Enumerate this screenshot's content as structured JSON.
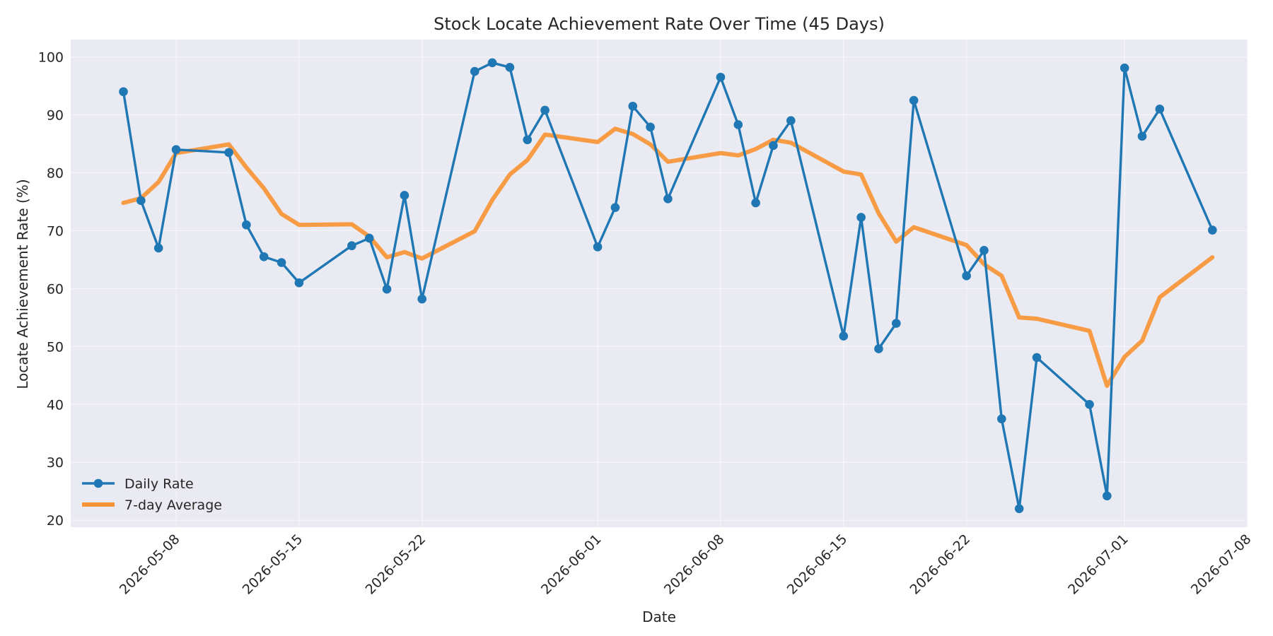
{
  "chart_data": {
    "type": "line",
    "title": "Stock Locate Achievement Rate Over Time (45 Days)",
    "xlabel": "Date",
    "ylabel": "Locate Achievement Rate (%)",
    "xlim": [
      "2026-05-02",
      "2026-07-08"
    ],
    "ylim": [
      18.8,
      103
    ],
    "x_ticks": [
      "2026-05-08",
      "2026-05-15",
      "2026-05-22",
      "2026-06-01",
      "2026-06-08",
      "2026-06-15",
      "2026-06-22",
      "2026-07-01",
      "2026-07-08"
    ],
    "y_ticks": [
      20,
      30,
      40,
      50,
      60,
      70,
      80,
      90,
      100
    ],
    "grid": true,
    "legend_position": "lower-left",
    "colors": {
      "plot_background": "#eaeaf2",
      "daily": "#1f77b4",
      "average": "#f79436"
    },
    "x": [
      "2026-05-05",
      "2026-05-06",
      "2026-05-07",
      "2026-05-08",
      "2026-05-11",
      "2026-05-12",
      "2026-05-13",
      "2026-05-14",
      "2026-05-15",
      "2026-05-18",
      "2026-05-19",
      "2026-05-20",
      "2026-05-21",
      "2026-05-22",
      "2026-05-25",
      "2026-05-26",
      "2026-05-27",
      "2026-05-28",
      "2026-05-29",
      "2026-06-01",
      "2026-06-02",
      "2026-06-03",
      "2026-06-04",
      "2026-06-05",
      "2026-06-08",
      "2026-06-09",
      "2026-06-10",
      "2026-06-11",
      "2026-06-12",
      "2026-06-15",
      "2026-06-16",
      "2026-06-17",
      "2026-06-18",
      "2026-06-19",
      "2026-06-22",
      "2026-06-23",
      "2026-06-24",
      "2026-06-25",
      "2026-06-26",
      "2026-06-29",
      "2026-06-30",
      "2026-07-01",
      "2026-07-02",
      "2026-07-03",
      "2026-07-06"
    ],
    "series": [
      {
        "name": "Daily Rate",
        "values": [
          94.0,
          75.2,
          67.0,
          84.0,
          83.5,
          71.0,
          65.5,
          64.5,
          61.0,
          67.4,
          68.7,
          59.9,
          76.1,
          58.2,
          97.5,
          99.0,
          98.2,
          85.7,
          90.8,
          67.2,
          74.0,
          91.5,
          87.9,
          75.5,
          96.5,
          88.3,
          74.8,
          84.7,
          89.0,
          51.8,
          72.3,
          49.6,
          54.0,
          92.5,
          62.2,
          66.6,
          37.5,
          22.0,
          48.1,
          40.0,
          24.2,
          98.1,
          86.3,
          91.0,
          70.1
        ]
      },
      {
        "name": "7-day Average",
        "values": [
          74.8,
          75.6,
          78.4,
          83.4,
          84.9,
          80.9,
          77.3,
          72.9,
          71.0,
          71.1,
          69.0,
          65.4,
          66.3,
          65.2,
          69.9,
          75.3,
          79.7,
          82.2,
          86.6,
          85.3,
          87.6,
          86.7,
          84.9,
          81.9,
          83.4,
          83.0,
          84.1,
          85.7,
          85.2,
          80.2,
          79.7,
          73.0,
          68.1,
          70.6,
          67.5,
          64.2,
          62.2,
          55.0,
          54.8,
          52.7,
          43.2,
          48.2,
          51.0,
          58.5,
          65.4
        ]
      }
    ]
  }
}
